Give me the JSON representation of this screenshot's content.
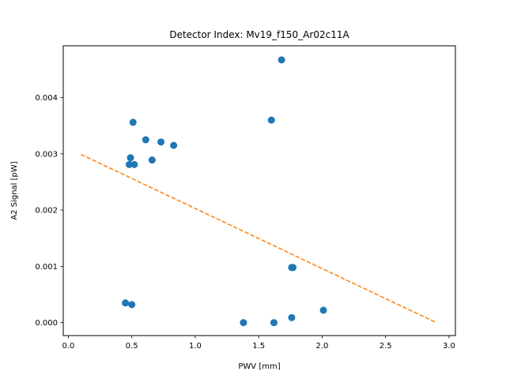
{
  "chart_data": {
    "type": "scatter",
    "title": "Detector Index: Mv19_f150_Ar02c11A",
    "xlabel": "PWV [mm]",
    "ylabel": "A2 Signal [pW]",
    "xlim": [
      -0.04,
      3.05
    ],
    "ylim": [
      -0.00023,
      0.00492
    ],
    "xticks": [
      0.0,
      0.5,
      1.0,
      1.5,
      2.0,
      2.5,
      3.0
    ],
    "xtick_labels": [
      "0.0",
      "0.5",
      "1.0",
      "1.5",
      "2.0",
      "2.5",
      "3.0"
    ],
    "yticks": [
      0.0,
      0.001,
      0.002,
      0.003,
      0.004
    ],
    "ytick_labels": [
      "0.000",
      "0.001",
      "0.002",
      "0.003",
      "0.004"
    ],
    "grid": false,
    "series": [
      {
        "name": "measurements",
        "kind": "scatter",
        "color": "#1f77b4",
        "points": [
          {
            "x": 1.68,
            "y": 0.00467
          },
          {
            "x": 0.51,
            "y": 0.00356
          },
          {
            "x": 1.6,
            "y": 0.0036
          },
          {
            "x": 0.61,
            "y": 0.00325
          },
          {
            "x": 0.73,
            "y": 0.00321
          },
          {
            "x": 0.83,
            "y": 0.00315
          },
          {
            "x": 0.49,
            "y": 0.00293
          },
          {
            "x": 0.66,
            "y": 0.00289
          },
          {
            "x": 0.48,
            "y": 0.00281
          },
          {
            "x": 0.52,
            "y": 0.00281
          },
          {
            "x": 1.77,
            "y": 0.00098
          },
          {
            "x": 1.76,
            "y": 0.00098
          },
          {
            "x": 0.45,
            "y": 0.00035
          },
          {
            "x": 0.5,
            "y": 0.00032
          },
          {
            "x": 2.01,
            "y": 0.00022
          },
          {
            "x": 1.76,
            "y": 9e-05
          },
          {
            "x": 1.38,
            "y": 0.0
          },
          {
            "x": 1.62,
            "y": 0.0
          }
        ]
      },
      {
        "name": "fit",
        "kind": "line",
        "style": "dashed",
        "color": "#ff7f0e",
        "points": [
          {
            "x": 0.1,
            "y": 0.00299
          },
          {
            "x": 2.9,
            "y": 0.0
          }
        ]
      }
    ]
  }
}
